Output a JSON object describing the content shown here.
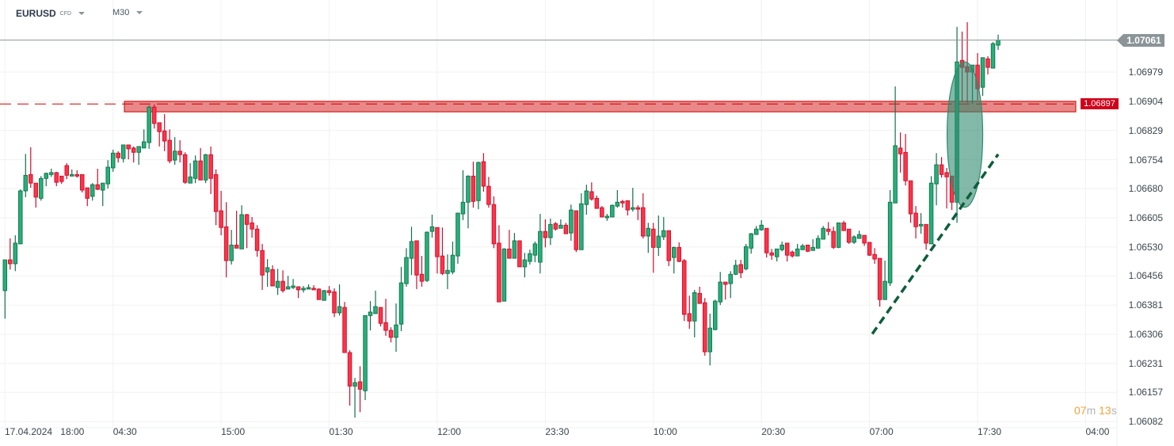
{
  "header": {
    "symbol": "EURUSD",
    "instrument_type": "CFD",
    "timeframe": "M30"
  },
  "countdown": {
    "minutes": "07",
    "minutes_unit": "m",
    "seconds": "13",
    "seconds_unit": "s"
  },
  "colors": {
    "up": "#26b07a",
    "up_border": "#12704a",
    "down": "#ff3347",
    "down_border": "#c8102e",
    "zone": "#e57373",
    "zone_border": "#cc0000",
    "ellipse": "#2e8b6e",
    "trendline": "#0d5e3a",
    "price_line": "#8b9497",
    "countdown": "#f7a23b"
  },
  "chart_data": {
    "type": "candlestick",
    "symbol": "EURUSD",
    "timeframe": "M30",
    "ylim": [
      1.06066,
      1.07164
    ],
    "grid": true,
    "y_ticks": [
      "1.06979",
      "1.06904",
      "1.06829",
      "1.06754",
      "1.06680",
      "1.06605",
      "1.06530",
      "1.06456",
      "1.06381",
      "1.06306",
      "1.06231",
      "1.06157",
      "1.06082"
    ],
    "x_ticks": [
      "18:00",
      "04:30",
      "15:00",
      "01:30",
      "12:00",
      "23:30",
      "10:00",
      "20:30",
      "07:00",
      "17:30",
      "04:00"
    ],
    "x_date_label": "17.04.2024",
    "current_price": "1.07061",
    "resistance_zone": {
      "label": "1.06897",
      "level": 1.06897,
      "top": 1.06904,
      "bottom": 1.06877,
      "color": "#e57373"
    },
    "annotations": [
      {
        "type": "ellipse",
        "color": "#2e8b6e",
        "top": 1.07005,
        "bottom": 1.06632,
        "candle_from": 183,
        "candle_to": 189
      },
      {
        "type": "dashed-trendline",
        "color": "#0d5e3a",
        "from": {
          "candle": 168,
          "price": 1.06307
        },
        "to": {
          "candle": 194,
          "price": 1.06768
        }
      }
    ],
    "candles_ohlc": [
      [
        1.06418,
        1.06497,
        1.06346,
        1.06497
      ],
      [
        1.06497,
        1.06552,
        1.06472,
        1.06487
      ],
      [
        1.06487,
        1.0656,
        1.06468,
        1.0654
      ],
      [
        1.06538,
        1.06678,
        1.06538,
        1.06674
      ],
      [
        1.06674,
        1.06769,
        1.06658,
        1.06714
      ],
      [
        1.06716,
        1.06786,
        1.06682,
        1.06694
      ],
      [
        1.06694,
        1.06694,
        1.06631,
        1.06658
      ],
      [
        1.06655,
        1.06712,
        1.06649,
        1.06706
      ],
      [
        1.06706,
        1.06721,
        1.06686,
        1.06719
      ],
      [
        1.06716,
        1.06731,
        1.0671,
        1.06721
      ],
      [
        1.06721,
        1.06723,
        1.06686,
        1.06696
      ],
      [
        1.06712,
        1.06712,
        1.06692,
        1.06698
      ],
      [
        1.06739,
        1.06745,
        1.06704,
        1.06714
      ],
      [
        1.06712,
        1.06729,
        1.06712,
        1.06716
      ],
      [
        1.06716,
        1.06727,
        1.06708,
        1.06712
      ],
      [
        1.06716,
        1.06716,
        1.0667,
        1.06676
      ],
      [
        1.06682,
        1.06682,
        1.06635,
        1.06655
      ],
      [
        1.0666,
        1.06694,
        1.06649,
        1.0669
      ],
      [
        1.0669,
        1.06731,
        1.06676,
        1.06678
      ],
      [
        1.06676,
        1.06694,
        1.06635,
        1.06694
      ],
      [
        1.06692,
        1.06753,
        1.0668,
        1.06735
      ],
      [
        1.06733,
        1.0678,
        1.06723,
        1.06771
      ],
      [
        1.06771,
        1.06776,
        1.06747,
        1.06759
      ],
      [
        1.06757,
        1.06792,
        1.06747,
        1.06792
      ],
      [
        1.06792,
        1.06792,
        1.06755,
        1.06782
      ],
      [
        1.06784,
        1.06788,
        1.06747,
        1.06773
      ],
      [
        1.06773,
        1.06788,
        1.06741,
        1.06788
      ],
      [
        1.06784,
        1.06832,
        1.06784,
        1.068
      ],
      [
        1.06798,
        1.06893,
        1.06782,
        1.06889
      ],
      [
        1.06889,
        1.06896,
        1.06834,
        1.06847
      ],
      [
        1.06849,
        1.06849,
        1.06788,
        1.06826
      ],
      [
        1.06828,
        1.06871,
        1.06776,
        1.06802
      ],
      [
        1.06804,
        1.06832,
        1.06745,
        1.06751
      ],
      [
        1.06753,
        1.06812,
        1.06741,
        1.06776
      ],
      [
        1.06776,
        1.06804,
        1.06747,
        1.06767
      ],
      [
        1.06767,
        1.06773,
        1.06692,
        1.06696
      ],
      [
        1.06694,
        1.06745,
        1.06694,
        1.0671
      ],
      [
        1.06706,
        1.06765,
        1.06694,
        1.06751
      ],
      [
        1.06751,
        1.06784,
        1.06702,
        1.06702
      ],
      [
        1.06702,
        1.06769,
        1.06694,
        1.06767
      ],
      [
        1.06767,
        1.06788,
        1.06666,
        1.06706
      ],
      [
        1.06716,
        1.06729,
        1.06586,
        1.06621
      ],
      [
        1.06623,
        1.06674,
        1.0656,
        1.0658
      ],
      [
        1.06582,
        1.06645,
        1.06452,
        1.06495
      ],
      [
        1.06495,
        1.06574,
        1.06485,
        1.06535
      ],
      [
        1.06535,
        1.06623,
        1.06527,
        1.06527
      ],
      [
        1.06525,
        1.06637,
        1.06525,
        1.06613
      ],
      [
        1.06613,
        1.06615,
        1.06527,
        1.06588
      ],
      [
        1.06592,
        1.06607,
        1.06554,
        1.06576
      ],
      [
        1.06576,
        1.06586,
        1.06505,
        1.06521
      ],
      [
        1.06521,
        1.06538,
        1.0642,
        1.06458
      ],
      [
        1.06466,
        1.06499,
        1.06428,
        1.06477
      ],
      [
        1.06472,
        1.06483,
        1.0643,
        1.0643
      ],
      [
        1.06426,
        1.06474,
        1.06407,
        1.06442
      ],
      [
        1.06442,
        1.0647,
        1.06413,
        1.06418
      ],
      [
        1.06422,
        1.06456,
        1.06422,
        1.06428
      ],
      [
        1.06426,
        1.06448,
        1.06422,
        1.0643
      ],
      [
        1.06428,
        1.06428,
        1.06399,
        1.0642
      ],
      [
        1.0642,
        1.0643,
        1.06413,
        1.06424
      ],
      [
        1.06422,
        1.06434,
        1.06422,
        1.06426
      ],
      [
        1.06424,
        1.06432,
        1.0642,
        1.0642
      ],
      [
        1.06422,
        1.06424,
        1.06395,
        1.06395
      ],
      [
        1.06393,
        1.0642,
        1.06393,
        1.06418
      ],
      [
        1.06418,
        1.0643,
        1.06405,
        1.06413
      ],
      [
        1.06415,
        1.06424,
        1.0635,
        1.06361
      ],
      [
        1.06361,
        1.06434,
        1.06354,
        1.06377
      ],
      [
        1.06375,
        1.06389,
        1.06259,
        1.06259
      ],
      [
        1.06259,
        1.06265,
        1.06123,
        1.06173
      ],
      [
        1.06173,
        1.06194,
        1.06092,
        1.06182
      ],
      [
        1.06184,
        1.06224,
        1.06106,
        1.06165
      ],
      [
        1.06161,
        1.06354,
        1.06137,
        1.06354
      ],
      [
        1.06354,
        1.06391,
        1.06316,
        1.06363
      ],
      [
        1.06359,
        1.06418,
        1.06359,
        1.06377
      ],
      [
        1.06375,
        1.06375,
        1.06326,
        1.06334
      ],
      [
        1.06336,
        1.06397,
        1.06302,
        1.06316
      ],
      [
        1.06316,
        1.06324,
        1.06285,
        1.06298
      ],
      [
        1.06298,
        1.06385,
        1.06261,
        1.0633
      ],
      [
        1.06332,
        1.06479,
        1.06314,
        1.06438
      ],
      [
        1.06436,
        1.06527,
        1.06428,
        1.06503
      ],
      [
        1.06501,
        1.06582,
        1.06458,
        1.06544
      ],
      [
        1.06546,
        1.06546,
        1.06422,
        1.06458
      ],
      [
        1.0646,
        1.06507,
        1.06428,
        1.06442
      ],
      [
        1.06444,
        1.0657,
        1.0644,
        1.06568
      ],
      [
        1.0657,
        1.06613,
        1.06554,
        1.06582
      ],
      [
        1.0658,
        1.0658,
        1.06462,
        1.06505
      ],
      [
        1.06507,
        1.0658,
        1.06458,
        1.06462
      ],
      [
        1.06462,
        1.06511,
        1.06422,
        1.0647
      ],
      [
        1.06466,
        1.06544,
        1.0646,
        1.06509
      ],
      [
        1.06507,
        1.06617,
        1.06487,
        1.06617
      ],
      [
        1.06615,
        1.06727,
        1.06599,
        1.06645
      ],
      [
        1.06645,
        1.06714,
        1.06578,
        1.06712
      ],
      [
        1.06712,
        1.06749,
        1.06631,
        1.06647
      ],
      [
        1.06649,
        1.06749,
        1.06627,
        1.06747
      ],
      [
        1.06749,
        1.06771,
        1.06672,
        1.06686
      ],
      [
        1.06686,
        1.0671,
        1.06631,
        1.06639
      ],
      [
        1.06639,
        1.0666,
        1.06527,
        1.06538
      ],
      [
        1.0654,
        1.06586,
        1.06389,
        1.06389
      ],
      [
        1.06391,
        1.06527,
        1.06391,
        1.06525
      ],
      [
        1.06525,
        1.06574,
        1.06501,
        1.06501
      ],
      [
        1.06501,
        1.06566,
        1.06501,
        1.06546
      ],
      [
        1.06546,
        1.06546,
        1.06479,
        1.06479
      ],
      [
        1.06479,
        1.06515,
        1.06452,
        1.06497
      ],
      [
        1.06493,
        1.06523,
        1.06485,
        1.06513
      ],
      [
        1.06509,
        1.06544,
        1.06491,
        1.06538
      ],
      [
        1.06491,
        1.06615,
        1.06462,
        1.0657
      ],
      [
        1.0657,
        1.06601,
        1.06529,
        1.06554
      ],
      [
        1.06554,
        1.06603,
        1.06535,
        1.06588
      ],
      [
        1.0659,
        1.06594,
        1.06572,
        1.06576
      ],
      [
        1.06578,
        1.06601,
        1.06578,
        1.06586
      ],
      [
        1.06586,
        1.06592,
        1.06564,
        1.06564
      ],
      [
        1.06566,
        1.06639,
        1.06546,
        1.06625
      ],
      [
        1.06623,
        1.06623,
        1.06517,
        1.06523
      ],
      [
        1.06523,
        1.06668,
        1.06523,
        1.06641
      ],
      [
        1.06639,
        1.0669,
        1.06613,
        1.06674
      ],
      [
        1.06672,
        1.06696,
        1.06649,
        1.06653
      ],
      [
        1.06655,
        1.06662,
        1.06629,
        1.06629
      ],
      [
        1.06631,
        1.06635,
        1.06607,
        1.06607
      ],
      [
        1.06605,
        1.06615,
        1.06597,
        1.06609
      ],
      [
        1.06607,
        1.06639,
        1.06607,
        1.06637
      ],
      [
        1.06635,
        1.06676,
        1.06631,
        1.06645
      ],
      [
        1.06647,
        1.06651,
        1.06631,
        1.06643
      ],
      [
        1.06649,
        1.06649,
        1.06611,
        1.06625
      ],
      [
        1.06627,
        1.06682,
        1.06621,
        1.06631
      ],
      [
        1.06631,
        1.06637,
        1.06599,
        1.06627
      ],
      [
        1.06631,
        1.06668,
        1.06552,
        1.06558
      ],
      [
        1.06558,
        1.06592,
        1.06515,
        1.06578
      ],
      [
        1.06576,
        1.06592,
        1.06464,
        1.06529
      ],
      [
        1.06529,
        1.06611,
        1.06507,
        1.06558
      ],
      [
        1.06556,
        1.06607,
        1.06548,
        1.06572
      ],
      [
        1.06572,
        1.06572,
        1.06481,
        1.06495
      ],
      [
        1.06503,
        1.06531,
        1.06462,
        1.06529
      ],
      [
        1.06529,
        1.06542,
        1.06491,
        1.06493
      ],
      [
        1.06495,
        1.06499,
        1.0634,
        1.06357
      ],
      [
        1.06359,
        1.06405,
        1.0632,
        1.0634
      ],
      [
        1.0634,
        1.0642,
        1.06298,
        1.06413
      ],
      [
        1.06411,
        1.06428,
        1.06385,
        1.06385
      ],
      [
        1.06387,
        1.06399,
        1.06251,
        1.06261
      ],
      [
        1.06261,
        1.06359,
        1.06226,
        1.06322
      ],
      [
        1.06318,
        1.06395,
        1.06316,
        1.06391
      ],
      [
        1.06389,
        1.06466,
        1.06381,
        1.0644
      ],
      [
        1.0644,
        1.0644,
        1.06395,
        1.06434
      ],
      [
        1.06436,
        1.06468,
        1.06399,
        1.0646
      ],
      [
        1.0646,
        1.06497,
        1.06458,
        1.06483
      ],
      [
        1.06485,
        1.06497,
        1.0645,
        1.06464
      ],
      [
        1.06474,
        1.06538,
        1.0647,
        1.06531
      ],
      [
        1.06527,
        1.06566,
        1.06513,
        1.06564
      ],
      [
        1.06562,
        1.06584,
        1.06562,
        1.06576
      ],
      [
        1.06574,
        1.06599,
        1.06572,
        1.06586
      ],
      [
        1.06578,
        1.06578,
        1.06503,
        1.06515
      ],
      [
        1.06515,
        1.06525,
        1.06497,
        1.06509
      ],
      [
        1.06505,
        1.06525,
        1.06493,
        1.06525
      ],
      [
        1.06523,
        1.06544,
        1.06519,
        1.06535
      ],
      [
        1.0654,
        1.0654,
        1.06493,
        1.06509
      ],
      [
        1.06517,
        1.06521,
        1.06503,
        1.06507
      ],
      [
        1.06507,
        1.06538,
        1.06507,
        1.06525
      ],
      [
        1.06523,
        1.06538,
        1.06523,
        1.06533
      ],
      [
        1.06535,
        1.06535,
        1.06517,
        1.06519
      ],
      [
        1.06521,
        1.0655,
        1.06521,
        1.06529
      ],
      [
        1.06527,
        1.0656,
        1.06527,
        1.06552
      ],
      [
        1.0655,
        1.06584,
        1.0655,
        1.06578
      ],
      [
        1.06576,
        1.06594,
        1.0656,
        1.0657
      ],
      [
        1.0657,
        1.06582,
        1.06525,
        1.06529
      ],
      [
        1.06529,
        1.06592,
        1.06527,
        1.06592
      ],
      [
        1.06592,
        1.06597,
        1.06572,
        1.06572
      ],
      [
        1.06576,
        1.06576,
        1.06538,
        1.06542
      ],
      [
        1.06542,
        1.0656,
        1.06538,
        1.06556
      ],
      [
        1.06552,
        1.06572,
        1.06552,
        1.06562
      ],
      [
        1.0656,
        1.0656,
        1.06533,
        1.0654
      ],
      [
        1.06542,
        1.06542,
        1.06507,
        1.06509
      ],
      [
        1.06511,
        1.06527,
        1.06487,
        1.06499
      ],
      [
        1.06501,
        1.06501,
        1.06377,
        1.06395
      ],
      [
        1.06395,
        1.06495,
        1.06395,
        1.06442
      ],
      [
        1.06438,
        1.06676,
        1.0643,
        1.06645
      ],
      [
        1.06643,
        1.06942,
        1.06643,
        1.0679
      ],
      [
        1.06784,
        1.06824,
        1.06721,
        1.06769
      ],
      [
        1.06773,
        1.0682,
        1.06688,
        1.067
      ],
      [
        1.067,
        1.067,
        1.06592,
        1.06615
      ],
      [
        1.06617,
        1.06635,
        1.06552,
        1.06582
      ],
      [
        1.06584,
        1.06617,
        1.06564,
        1.06588
      ],
      [
        1.06588,
        1.06588,
        1.06523,
        1.0654
      ],
      [
        1.06538,
        1.06712,
        1.06538,
        1.06694
      ],
      [
        1.06692,
        1.06771,
        1.06637,
        1.06741
      ],
      [
        1.06741,
        1.06761,
        1.06708,
        1.06716
      ],
      [
        1.06721,
        1.06733,
        1.06629,
        1.0671
      ],
      [
        1.06712,
        1.06712,
        1.06625,
        1.06645
      ],
      [
        1.06645,
        1.07095,
        1.06592,
        1.07005
      ],
      [
        1.07009,
        1.07083,
        1.06902,
        1.06991
      ],
      [
        1.06993,
        1.07107,
        1.069,
        1.06979
      ],
      [
        1.06979,
        1.06997,
        1.06896,
        1.06997
      ],
      [
        1.06997,
        1.07028,
        1.06906,
        1.06936
      ],
      [
        1.0694,
        1.07016,
        1.06918,
        1.07016
      ],
      [
        1.07013,
        1.0702,
        1.06973,
        1.06991
      ],
      [
        1.06989,
        1.07056,
        1.06989,
        1.07052
      ],
      [
        1.07048,
        1.07075,
        1.07036,
        1.07061
      ]
    ]
  }
}
